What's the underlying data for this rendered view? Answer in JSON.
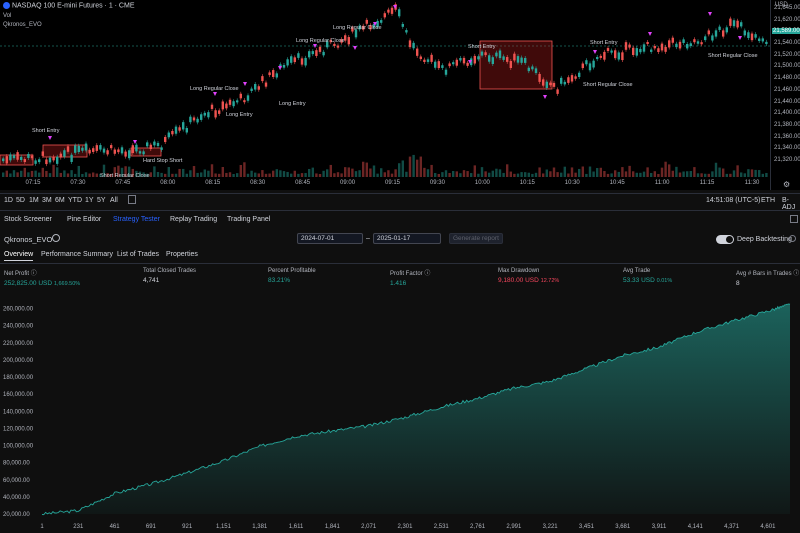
{
  "chart": {
    "symbol": "NASDAQ 100 E-mini Futures · 1 · CME",
    "vol_label": "Vol",
    "strategy_label": "Qkronos_EVO",
    "price_unit": "USD",
    "price_ticks": [
      "21,645.00",
      "21,620.00",
      "21,589.00",
      "21,540.00",
      "21,520.00",
      "21,500.00",
      "21,480.00",
      "21,460.00",
      "21,440.00",
      "21,400.00",
      "21,380.00",
      "21,360.00",
      "21,340.00",
      "21,320.00"
    ],
    "time_ticks": [
      "07:15",
      "07:30",
      "07:45",
      "08:00",
      "08:15",
      "08:30",
      "08:45",
      "09:00",
      "09:15",
      "09:30",
      "10:00",
      "10:15",
      "10:30",
      "10:45",
      "11:00",
      "11:15",
      "11:30"
    ],
    "annotations": [
      "Short Entry",
      "Long Regular Close",
      "Long Entry",
      "Short Regular Close",
      "Hard Stop Short",
      "Long Regular Close",
      "Long Entry",
      "Short Entry",
      "Long Regular Close",
      "Short Regular Close",
      "Short Entry",
      "Short Regular Close"
    ],
    "colors": {
      "up": "#26a69a",
      "down": "#ef5350",
      "price_label": "#26a69a"
    }
  },
  "toolbar": {
    "timeframes": [
      "1D",
      "5D",
      "1M",
      "3M",
      "6M",
      "YTD",
      "1Y",
      "5Y",
      "All"
    ],
    "clock": "14:51:08 (UTC-5)",
    "session": "ETH",
    "adjust": "B-ADJ"
  },
  "panel_tabs": [
    "Stock Screener",
    "Pine Editor",
    "Strategy Tester",
    "Replay Trading",
    "Trading Panel"
  ],
  "strategy": {
    "name": "Qkronos_EVO",
    "date_from": "2024-07-01",
    "date_to": "2025-01-17",
    "generate_label": "Generate report",
    "deep_label": "Deep Backtesting"
  },
  "sub_tabs": [
    "Overview",
    "Performance Summary",
    "List of Trades",
    "Properties"
  ],
  "metrics": [
    {
      "label": "Net Profit",
      "value": "252,825.00 USD",
      "extra": "1,669.50%",
      "color": "#26a69a"
    },
    {
      "label": "Total Closed Trades",
      "value": "4,741",
      "extra": "",
      "color": "#d1d4dc"
    },
    {
      "label": "Percent Profitable",
      "value": "83.21%",
      "extra": "",
      "color": "#26a69a"
    },
    {
      "label": "Profit Factor",
      "value": "1.416",
      "extra": "",
      "color": "#26a69a"
    },
    {
      "label": "Max Drawdown",
      "value": "9,180.00 USD",
      "extra": "12.72%",
      "color": "#f6465d"
    },
    {
      "label": "Avg Trade",
      "value": "53.33 USD",
      "extra": "0.01%",
      "color": "#26a69a"
    },
    {
      "label": "Avg # Bars in Trades",
      "value": "8",
      "extra": "",
      "color": "#d1d4dc"
    }
  ],
  "chart_data": {
    "type": "area",
    "ylim": [
      20000,
      270000
    ],
    "y_ticks": [
      "260,000.00",
      "240,000.00",
      "220,000.00",
      "200,000.00",
      "180,000.00",
      "160,000.00",
      "140,000.00",
      "120,000.00",
      "100,000.00",
      "80,000.00",
      "60,000.00",
      "40,000.00",
      "20,000.00"
    ],
    "x_ticks": [
      "1",
      "231",
      "461",
      "691",
      "921",
      "1,151",
      "1,381",
      "1,611",
      "1,841",
      "2,071",
      "2,301",
      "2,531",
      "2,761",
      "2,991",
      "3,221",
      "3,451",
      "3,681",
      "3,911",
      "4,141",
      "4,371",
      "4,601"
    ],
    "x": [
      1,
      231,
      461,
      691,
      921,
      1151,
      1381,
      1611,
      1841,
      2071,
      2301,
      2531,
      2761,
      2991,
      3221,
      3451,
      3681,
      3911,
      4141,
      4371,
      4601,
      4741
    ],
    "y": [
      20000,
      24000,
      44000,
      55000,
      68000,
      82000,
      99000,
      111000,
      117000,
      123000,
      133000,
      145000,
      155000,
      167000,
      175000,
      190000,
      205000,
      215000,
      232000,
      245000,
      257000,
      265000
    ],
    "color": "#26a69a"
  }
}
